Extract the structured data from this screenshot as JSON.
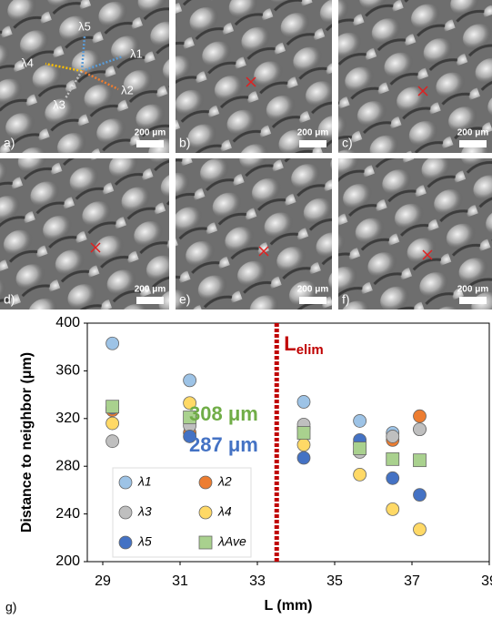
{
  "panels": [
    {
      "label": "a)",
      "scale": "200 μm"
    },
    {
      "label": "b)",
      "scale": "200 μm"
    },
    {
      "label": "c)",
      "scale": "200 μm"
    },
    {
      "label": "d)",
      "scale": "200 μm"
    },
    {
      "label": "e)",
      "scale": "200 μm"
    },
    {
      "label": "f)",
      "scale": "200 μm"
    }
  ],
  "panel_a_directions": [
    "λ5",
    "λ1",
    "λ4",
    "λ2",
    "λ3"
  ],
  "chart_data": {
    "type": "scatter",
    "panel_label": "g)",
    "x_label": "L (mm)",
    "y_label": "Distance to neighbor (μm)",
    "xlim": [
      28.6,
      39
    ],
    "xticks": [
      29,
      31,
      33,
      35,
      37,
      39
    ],
    "ylim": [
      200,
      400
    ],
    "yticks": [
      200,
      240,
      280,
      320,
      360,
      400
    ],
    "x": [
      29.25,
      31.25,
      34.2,
      35.65,
      36.5,
      37.2
    ],
    "series": [
      {
        "name": "λ1",
        "color": "#9dc3e6",
        "marker": "circle",
        "values": [
          383,
          352,
          334,
          318,
          308,
          311
        ]
      },
      {
        "name": "λ2",
        "color": "#ed7d31",
        "marker": "circle",
        "values": [
          327,
          308,
          312,
          299,
          302,
          322
        ]
      },
      {
        "name": "λ3",
        "color": "#bfbfbf",
        "marker": "circle",
        "values": [
          301,
          314,
          315,
          292,
          305,
          311
        ]
      },
      {
        "name": "λ4",
        "color": "#ffd966",
        "marker": "circle",
        "values": [
          316,
          333,
          298,
          273,
          244,
          227
        ]
      },
      {
        "name": "λ5",
        "color": "#4472c4",
        "marker": "circle",
        "values": [
          329,
          305,
          287,
          302,
          270,
          256
        ]
      },
      {
        "name": "λAve",
        "color": "#a9d18e",
        "marker": "square",
        "values": [
          330,
          321,
          308,
          295,
          286,
          285
        ]
      }
    ],
    "marker_x": 33.5,
    "marker_color": "#c00000",
    "marker_label": "L",
    "marker_label_sub": "elim",
    "annotations": [
      {
        "text": "308 μm",
        "color": "#70ad47"
      },
      {
        "text": "287 μm",
        "color": "#4472c4"
      }
    ]
  }
}
